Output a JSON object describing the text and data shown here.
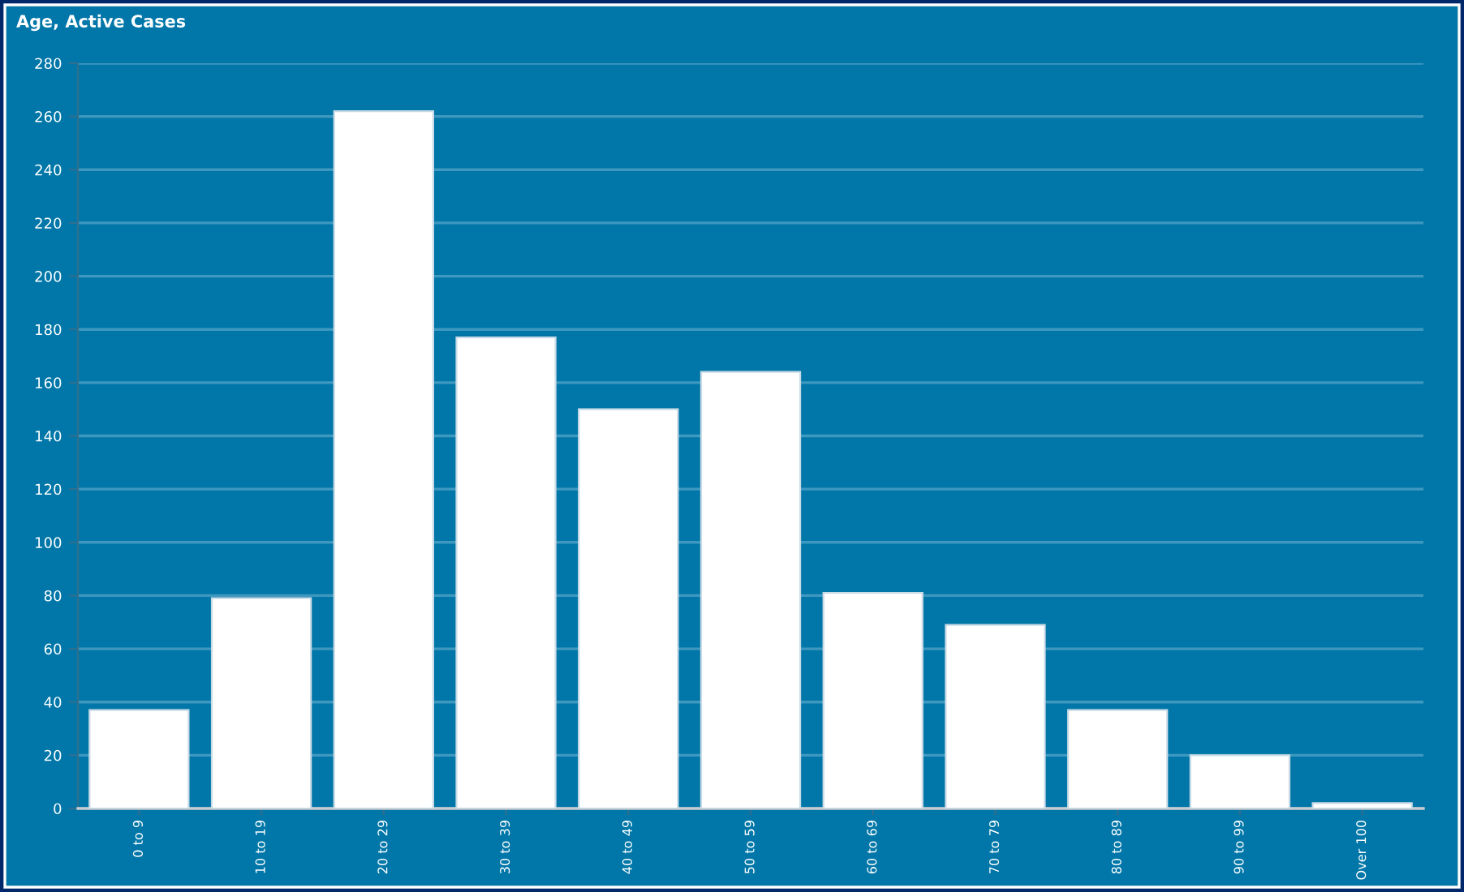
{
  "chart_data": {
    "type": "bar",
    "title": "Age, Active Cases",
    "categories": [
      "0 to 9",
      "10 to 19",
      "20 to 29",
      "30 to 39",
      "40 to 49",
      "50 to 59",
      "60 to 69",
      "70 to 79",
      "80 to 89",
      "90 to 99",
      "Over 100"
    ],
    "values": [
      37,
      79,
      262,
      177,
      150,
      164,
      81,
      69,
      37,
      20,
      2
    ],
    "color": "#ffffff",
    "ylim": [
      0,
      280
    ],
    "yticks": [
      0,
      20,
      40,
      60,
      80,
      100,
      120,
      140,
      160,
      180,
      200,
      220,
      240,
      260,
      280
    ],
    "grid": "y"
  }
}
